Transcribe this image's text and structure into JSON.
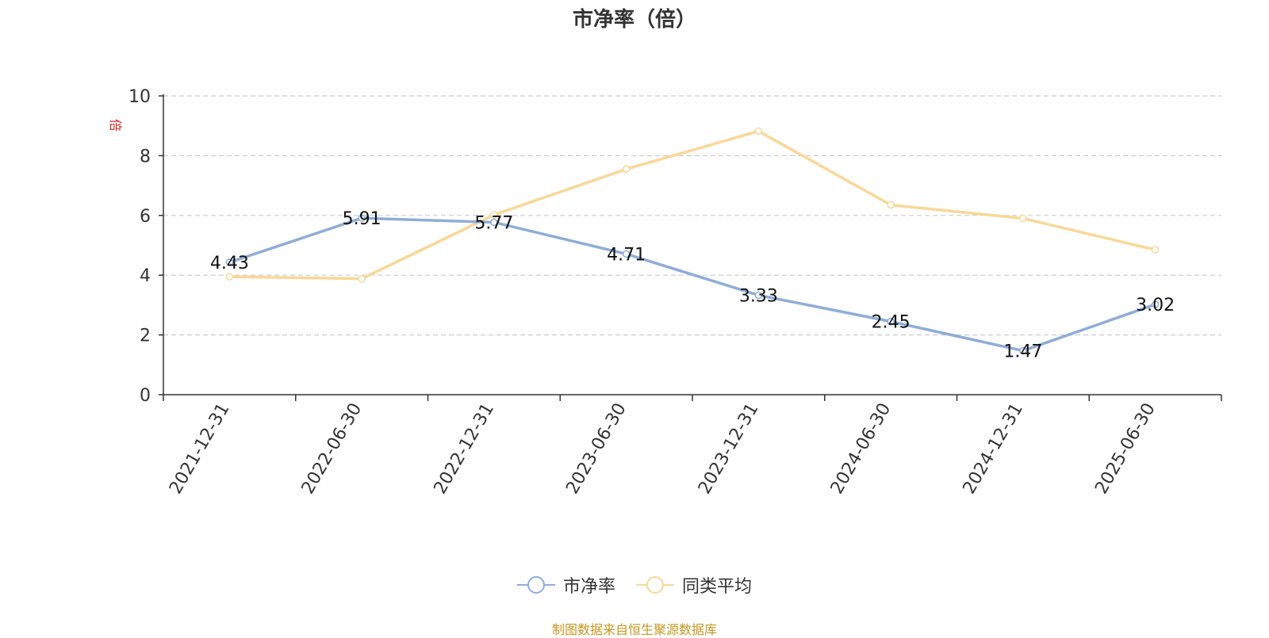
{
  "chart_data": {
    "type": "line",
    "title": "市净率（倍）",
    "ylabel": "倍",
    "categories": [
      "2021-12-31",
      "2022-06-30",
      "2022-12-31",
      "2023-06-30",
      "2023-12-31",
      "2024-06-30",
      "2024-12-31",
      "2025-06-30"
    ],
    "ylim": [
      0,
      10
    ],
    "yticks": [
      0,
      2,
      4,
      6,
      8,
      10
    ],
    "grid": true,
    "legend_position": "bottom",
    "series": [
      {
        "name": "市净率",
        "color": "#8eadd8",
        "values": [
          4.43,
          5.91,
          5.77,
          4.71,
          3.33,
          2.45,
          1.47,
          3.02
        ],
        "show_labels": true
      },
      {
        "name": "同类平均",
        "color": "#fad797",
        "values": [
          3.95,
          3.88,
          6.02,
          7.55,
          8.82,
          6.35,
          5.9,
          4.85
        ],
        "show_labels": false
      }
    ]
  },
  "source_note": "制图数据来自恒生聚源数据库",
  "colors": {
    "axis": "#333333",
    "grid": "#cccccc",
    "ylabel": "#e02020",
    "source": "#c8961e"
  }
}
